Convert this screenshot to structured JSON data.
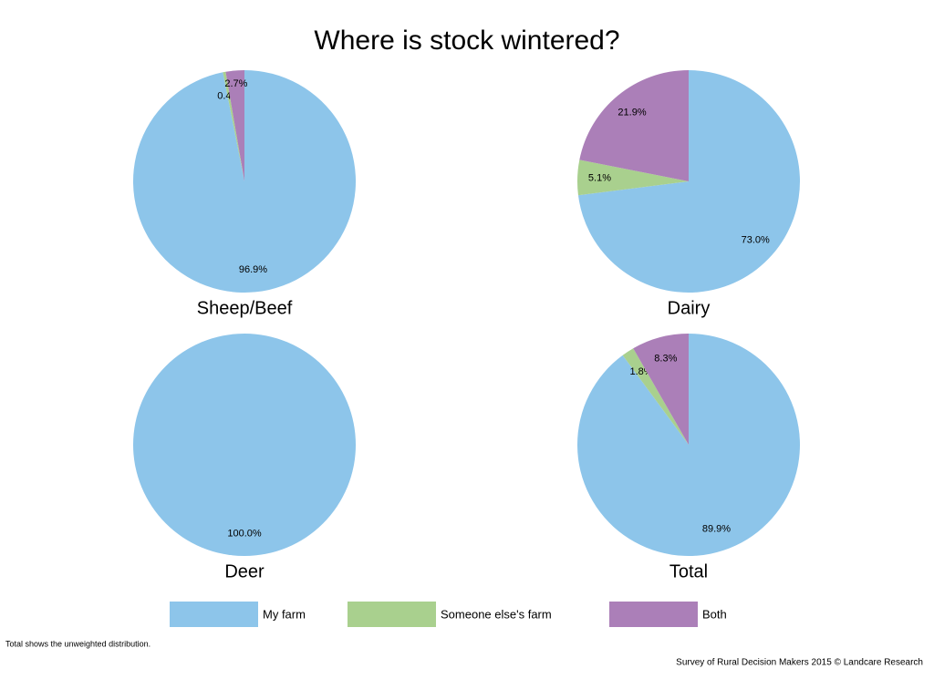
{
  "title": "Where is stock wintered?",
  "chart_data": [
    {
      "type": "pie",
      "title": "Sheep/Beef",
      "categories": [
        "My farm",
        "Someone else's farm",
        "Both"
      ],
      "values": [
        96.9,
        0.4,
        2.7
      ],
      "value_labels": [
        "96.9%",
        "0.4%",
        "2.7%"
      ],
      "colors": [
        "#8dc5ea",
        "#a9d08e",
        "#ab7fb8"
      ]
    },
    {
      "type": "pie",
      "title": "Dairy",
      "categories": [
        "My farm",
        "Someone else's farm",
        "Both"
      ],
      "values": [
        73.0,
        5.1,
        21.9
      ],
      "value_labels": [
        "73.0%",
        "5.1%",
        "21.9%"
      ],
      "colors": [
        "#8dc5ea",
        "#a9d08e",
        "#ab7fb8"
      ]
    },
    {
      "type": "pie",
      "title": "Deer",
      "categories": [
        "My farm"
      ],
      "values": [
        100.0
      ],
      "value_labels": [
        "100.0%"
      ],
      "colors": [
        "#8dc5ea"
      ]
    },
    {
      "type": "pie",
      "title": "Total",
      "categories": [
        "My farm",
        "Someone else's farm",
        "Both"
      ],
      "values": [
        89.9,
        1.8,
        8.3
      ],
      "value_labels": [
        "89.9%",
        "1.8%",
        "8.3%"
      ],
      "colors": [
        "#8dc5ea",
        "#a9d08e",
        "#ab7fb8"
      ]
    }
  ],
  "note": "Total shows the unweighted distribution.",
  "source": "Survey of Rural Decision Makers 2015 © Landcare Research"
}
